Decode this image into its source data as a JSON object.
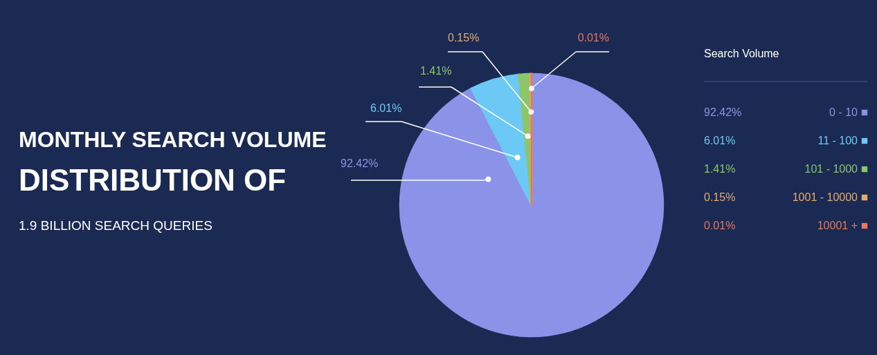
{
  "chart_data": {
    "type": "pie",
    "title": "MONTHLY SEARCH VOLUME\nDISTRIBUTION OF",
    "subtitle": "1.9 BILLION SEARCH QUERIES",
    "legend_title": "Search Volume",
    "legend": "right",
    "categories": [
      "0 - 10",
      "11 - 100",
      "101 - 1000",
      "1001 - 10000",
      "10001 +"
    ],
    "values": [
      92.42,
      6.01,
      1.41,
      0.15,
      0.01
    ],
    "colors": [
      "#8b93e8",
      "#6cc8f5",
      "#8cc56a",
      "#e8a870",
      "#e8775a"
    ],
    "value_labels": [
      "92.42%",
      "6.01%",
      "1.41%",
      "0.15%",
      "0.01%"
    ]
  }
}
